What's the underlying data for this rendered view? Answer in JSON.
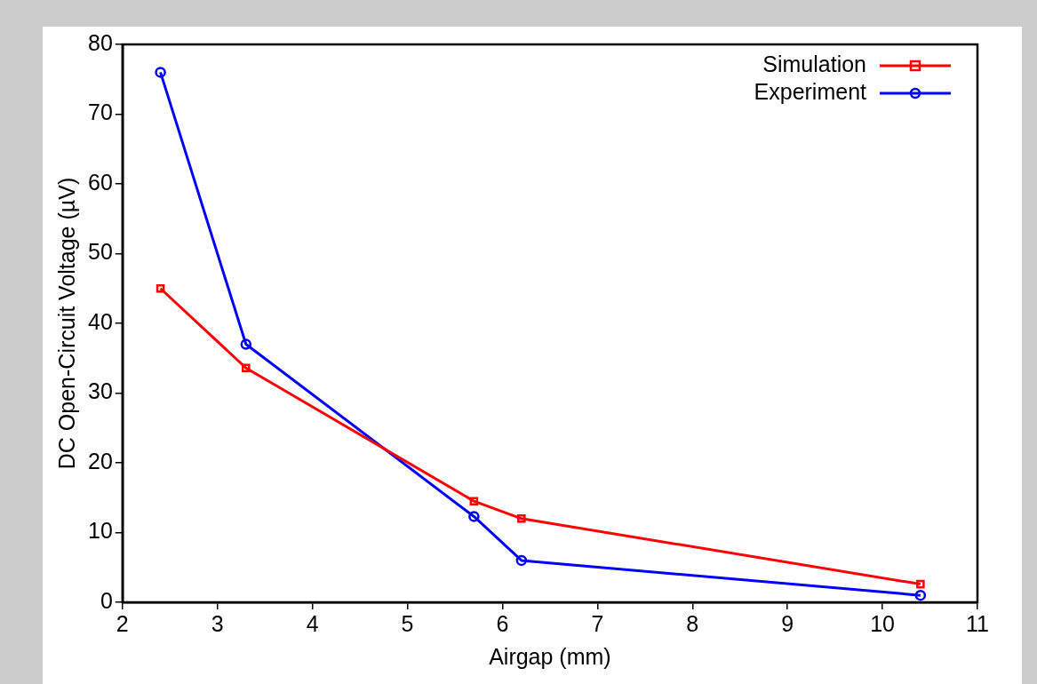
{
  "chart_data": {
    "type": "line",
    "xlabel": "Airgap (mm)",
    "ylabel": "DC Open-Circuit Voltage (µV)",
    "xlim": [
      2,
      11
    ],
    "xticks": [
      2,
      3,
      4,
      5,
      6,
      7,
      8,
      9,
      10,
      11
    ],
    "ylim": [
      0,
      80
    ],
    "yticks": [
      0,
      10,
      20,
      30,
      40,
      50,
      60,
      70,
      80
    ],
    "grid": false,
    "legend": "top right",
    "line_style": "solid",
    "series": [
      {
        "name": "Simulation",
        "color": "#ff0000",
        "marker": "square",
        "x": [
          2.4,
          3.3,
          5.7,
          6.2,
          10.4
        ],
        "values": [
          45,
          33.6,
          14.5,
          12,
          2.6
        ]
      },
      {
        "name": "Experiment",
        "color": "#0000ff",
        "marker": "circle",
        "x": [
          2.4,
          3.3,
          5.7,
          6.2,
          10.4
        ],
        "values": [
          76,
          37,
          12.3,
          6,
          1
        ]
      }
    ]
  }
}
